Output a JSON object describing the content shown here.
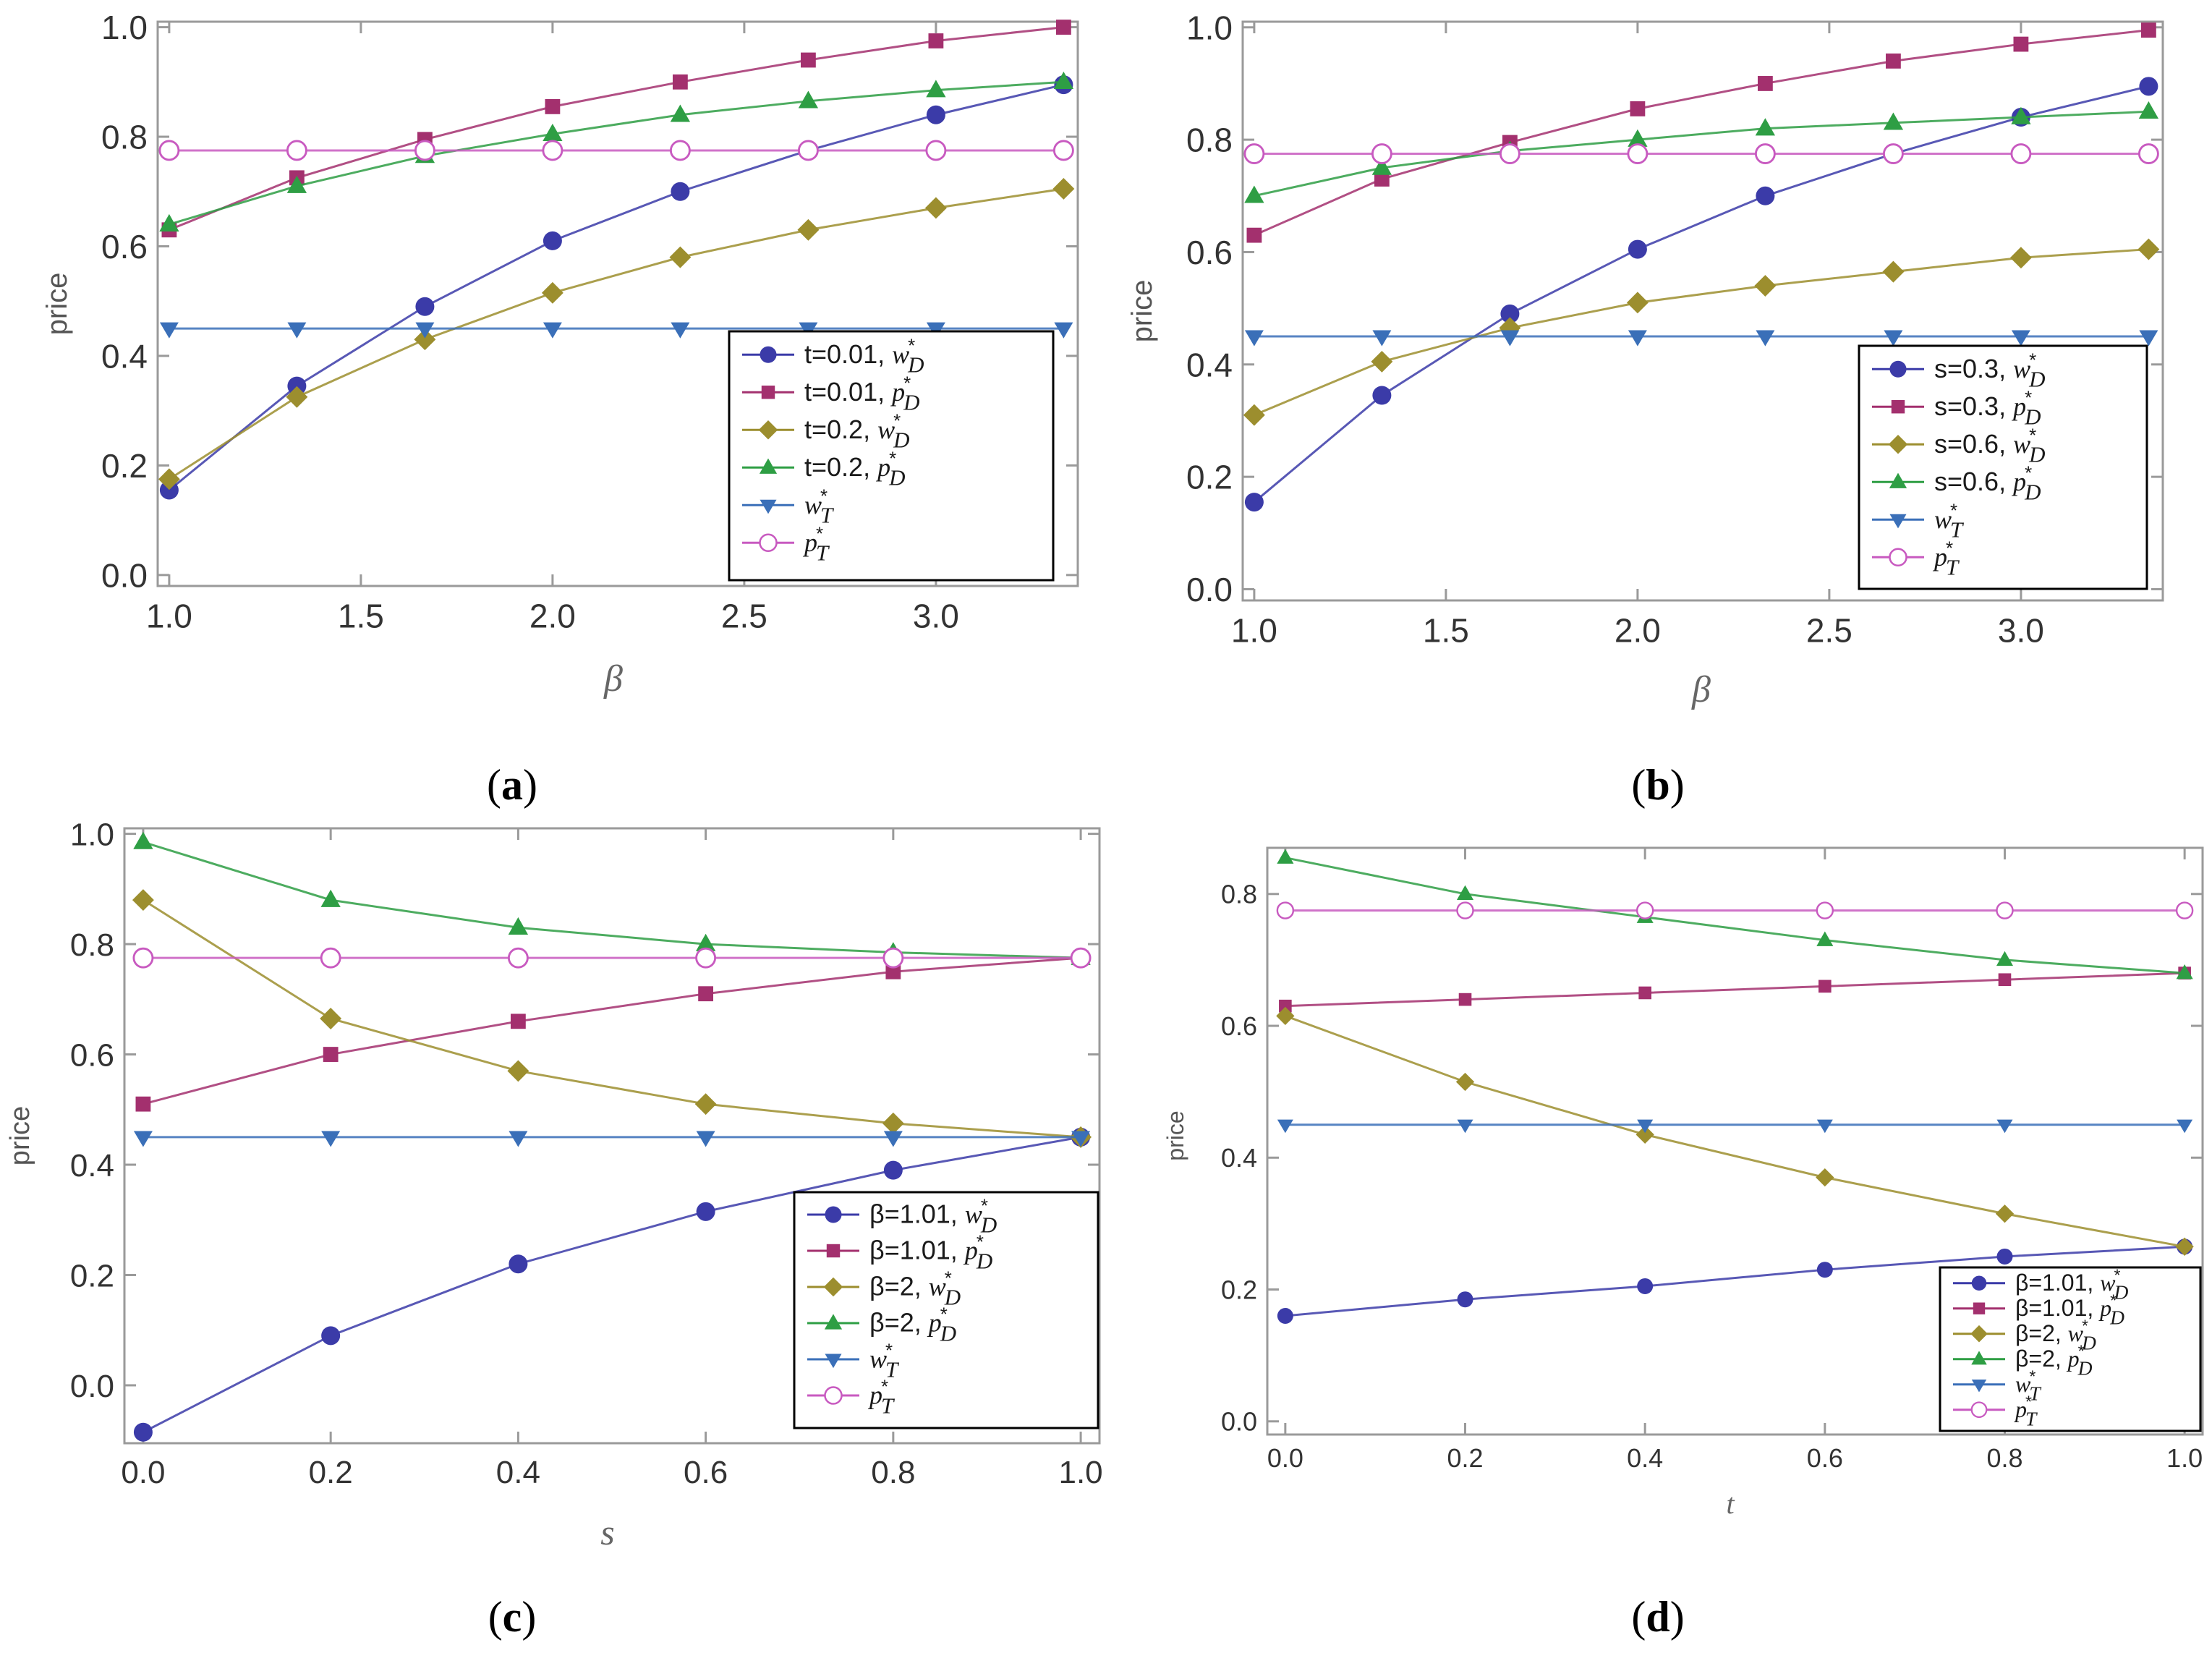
{
  "chart_data": [
    {
      "type": "line",
      "caption": "(a)",
      "caption_parts": [
        "(",
        "a",
        ")"
      ],
      "xlabel": "β",
      "ylabel": "price",
      "x": [
        1.0,
        1.333,
        1.667,
        2.0,
        2.333,
        2.667,
        3.0,
        3.333
      ],
      "xticks": [
        1.0,
        1.5,
        2.0,
        2.5,
        3.0
      ],
      "yticks": [
        0.0,
        0.2,
        0.4,
        0.6,
        0.8,
        1.0
      ],
      "tick_decimals": 1,
      "xlim": [
        0.97,
        3.37
      ],
      "ylim": [
        -0.02,
        1.01
      ],
      "legend_position": "lower-right",
      "series": [
        {
          "name": "t=0.01, w*D",
          "label_pre": "t=0.01, ",
          "sym": "w",
          "sub": "D",
          "marker": "circle",
          "color": "#3b3ba8",
          "values": [
            0.155,
            0.345,
            0.49,
            0.61,
            0.7,
            0.775,
            0.84,
            0.895
          ]
        },
        {
          "name": "t=0.01, p*D",
          "label_pre": "t=0.01, ",
          "sym": "p",
          "sub": "D",
          "marker": "square",
          "color": "#a3306e",
          "values": [
            0.63,
            0.725,
            0.795,
            0.855,
            0.9,
            0.94,
            0.975,
            1.0
          ]
        },
        {
          "name": "t=0.2, w*D",
          "label_pre": "t=0.2, ",
          "sym": "w",
          "sub": "D",
          "marker": "diamond",
          "color": "#9c8e2e",
          "values": [
            0.175,
            0.325,
            0.43,
            0.515,
            0.58,
            0.63,
            0.67,
            0.705
          ]
        },
        {
          "name": "t=0.2, p*D",
          "label_pre": "t=0.2, ",
          "sym": "p",
          "sub": "D",
          "marker": "triangle-up",
          "color": "#2e9e44",
          "values": [
            0.64,
            0.71,
            0.765,
            0.805,
            0.84,
            0.865,
            0.885,
            0.9
          ]
        },
        {
          "name": "w*T",
          "label_pre": "",
          "sym": "w",
          "sub": "T",
          "marker": "triangle-down",
          "color": "#3a6fb8",
          "values": [
            0.45,
            0.45,
            0.45,
            0.45,
            0.45,
            0.45,
            0.45,
            0.45
          ]
        },
        {
          "name": "p*T",
          "label_pre": "",
          "sym": "p",
          "sub": "T",
          "marker": "open-circle",
          "color": "#c85ac0",
          "values": [
            0.775,
            0.775,
            0.775,
            0.775,
            0.775,
            0.775,
            0.775,
            0.775
          ]
        }
      ]
    },
    {
      "type": "line",
      "caption": "(b)",
      "caption_parts": [
        "(",
        "b",
        ")"
      ],
      "xlabel": "β",
      "ylabel": "price",
      "x": [
        1.0,
        1.333,
        1.667,
        2.0,
        2.333,
        2.667,
        3.0,
        3.333
      ],
      "xticks": [
        1.0,
        1.5,
        2.0,
        2.5,
        3.0
      ],
      "yticks": [
        0.0,
        0.2,
        0.4,
        0.6,
        0.8,
        1.0
      ],
      "tick_decimals": 1,
      "xlim": [
        0.97,
        3.37
      ],
      "ylim": [
        -0.02,
        1.01
      ],
      "legend_position": "lower-right",
      "series": [
        {
          "name": "s=0.3, w*D",
          "label_pre": "s=0.3, ",
          "sym": "w",
          "sub": "D",
          "marker": "circle",
          "color": "#3b3ba8",
          "values": [
            0.155,
            0.345,
            0.49,
            0.605,
            0.7,
            0.775,
            0.84,
            0.895
          ]
        },
        {
          "name": "s=0.3, p*D",
          "label_pre": "s=0.3, ",
          "sym": "p",
          "sub": "D",
          "marker": "square",
          "color": "#a3306e",
          "values": [
            0.63,
            0.73,
            0.795,
            0.855,
            0.9,
            0.94,
            0.97,
            0.995
          ]
        },
        {
          "name": "s=0.6, w*D",
          "label_pre": "s=0.6, ",
          "sym": "w",
          "sub": "D",
          "marker": "diamond",
          "color": "#9c8e2e",
          "values": [
            0.31,
            0.405,
            0.465,
            0.51,
            0.54,
            0.565,
            0.59,
            0.605
          ]
        },
        {
          "name": "s=0.6, p*D",
          "label_pre": "s=0.6, ",
          "sym": "p",
          "sub": "D",
          "marker": "triangle-up",
          "color": "#2e9e44",
          "values": [
            0.7,
            0.75,
            0.78,
            0.8,
            0.82,
            0.83,
            0.84,
            0.85
          ]
        },
        {
          "name": "w*T",
          "label_pre": "",
          "sym": "w",
          "sub": "T",
          "marker": "triangle-down",
          "color": "#3a6fb8",
          "values": [
            0.45,
            0.45,
            0.45,
            0.45,
            0.45,
            0.45,
            0.45,
            0.45
          ]
        },
        {
          "name": "p*T",
          "label_pre": "",
          "sym": "p",
          "sub": "T",
          "marker": "open-circle",
          "color": "#c85ac0",
          "values": [
            0.775,
            0.775,
            0.775,
            0.775,
            0.775,
            0.775,
            0.775,
            0.775
          ]
        }
      ]
    },
    {
      "type": "line",
      "caption": "(c)",
      "caption_parts": [
        "(",
        "c",
        ")"
      ],
      "xlabel": "s",
      "ylabel": "price",
      "x": [
        0.0,
        0.2,
        0.4,
        0.6,
        0.8,
        1.0
      ],
      "xticks": [
        0.0,
        0.2,
        0.4,
        0.6,
        0.8,
        1.0
      ],
      "yticks": [
        0.0,
        0.2,
        0.4,
        0.6,
        0.8,
        1.0
      ],
      "tick_decimals": 1,
      "xlim": [
        -0.02,
        1.02
      ],
      "ylim": [
        -0.105,
        1.01
      ],
      "legend_position": "lower-right",
      "series": [
        {
          "name": "β=1.01, w*D",
          "label_pre": "β=1.01, ",
          "sym": "w",
          "sub": "D",
          "marker": "circle",
          "color": "#3b3ba8",
          "values": [
            -0.085,
            0.09,
            0.22,
            0.315,
            0.39,
            0.45
          ]
        },
        {
          "name": "β=1.01, p*D",
          "label_pre": "β=1.01, ",
          "sym": "p",
          "sub": "D",
          "marker": "square",
          "color": "#a3306e",
          "values": [
            0.51,
            0.6,
            0.66,
            0.71,
            0.75,
            0.775
          ]
        },
        {
          "name": "β=2, w*D",
          "label_pre": "β=2, ",
          "sym": "w",
          "sub": "D",
          "marker": "diamond",
          "color": "#9c8e2e",
          "values": [
            0.88,
            0.665,
            0.57,
            0.51,
            0.475,
            0.45
          ]
        },
        {
          "name": "β=2, p*D",
          "label_pre": "β=2, ",
          "sym": "p",
          "sub": "D",
          "marker": "triangle-up",
          "color": "#2e9e44",
          "values": [
            0.985,
            0.88,
            0.83,
            0.8,
            0.785,
            0.775
          ]
        },
        {
          "name": "w*T",
          "label_pre": "",
          "sym": "w",
          "sub": "T",
          "marker": "triangle-down",
          "color": "#3a6fb8",
          "values": [
            0.45,
            0.45,
            0.45,
            0.45,
            0.45,
            0.45
          ]
        },
        {
          "name": "p*T",
          "label_pre": "",
          "sym": "p",
          "sub": "T",
          "marker": "open-circle",
          "color": "#c85ac0",
          "values": [
            0.775,
            0.775,
            0.775,
            0.775,
            0.775,
            0.775
          ]
        }
      ]
    },
    {
      "type": "line",
      "caption": "(d)",
      "caption_parts": [
        "(",
        "d",
        ")"
      ],
      "xlabel": "t",
      "ylabel": "price",
      "x": [
        0.0,
        0.2,
        0.4,
        0.6,
        0.8,
        1.0
      ],
      "xticks": [
        0.0,
        0.2,
        0.4,
        0.6,
        0.8,
        1.0
      ],
      "yticks": [
        0.0,
        0.2,
        0.4,
        0.6,
        0.8
      ],
      "tick_decimals": 1,
      "xlim": [
        -0.02,
        1.02
      ],
      "ylim": [
        -0.02,
        0.87
      ],
      "legend_position": "lower-right",
      "series": [
        {
          "name": "β=1.01, w*D",
          "label_pre": "β=1.01, ",
          "sym": "w",
          "sub": "D",
          "marker": "circle",
          "color": "#3b3ba8",
          "values": [
            0.16,
            0.185,
            0.205,
            0.23,
            0.25,
            0.265
          ]
        },
        {
          "name": "β=1.01, p*D",
          "label_pre": "β=1.01, ",
          "sym": "p",
          "sub": "D",
          "marker": "square",
          "color": "#a3306e",
          "values": [
            0.63,
            0.64,
            0.65,
            0.66,
            0.67,
            0.68
          ]
        },
        {
          "name": "β=2, w*D",
          "label_pre": "β=2, ",
          "sym": "w",
          "sub": "D",
          "marker": "diamond",
          "color": "#9c8e2e",
          "values": [
            0.615,
            0.515,
            0.435,
            0.37,
            0.315,
            0.265
          ]
        },
        {
          "name": "β=2, p*D",
          "label_pre": "β=2, ",
          "sym": "p",
          "sub": "D",
          "marker": "triangle-up",
          "color": "#2e9e44",
          "values": [
            0.855,
            0.8,
            0.765,
            0.73,
            0.7,
            0.68
          ]
        },
        {
          "name": "w*T",
          "label_pre": "",
          "sym": "w",
          "sub": "T",
          "marker": "triangle-down",
          "color": "#3a6fb8",
          "values": [
            0.45,
            0.45,
            0.45,
            0.45,
            0.45,
            0.45
          ]
        },
        {
          "name": "p*T",
          "label_pre": "",
          "sym": "p",
          "sub": "T",
          "marker": "open-circle",
          "color": "#c85ac0",
          "values": [
            0.775,
            0.775,
            0.775,
            0.775,
            0.775,
            0.775
          ]
        }
      ]
    }
  ]
}
